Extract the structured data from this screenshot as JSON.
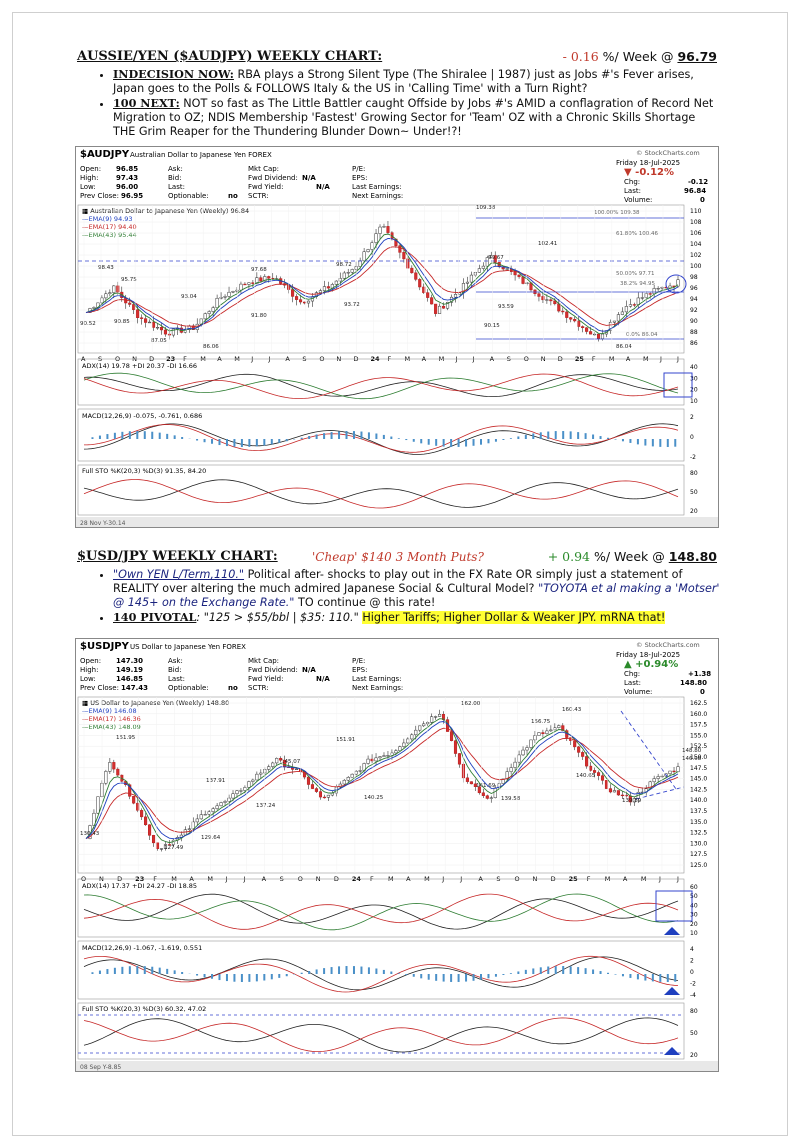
{
  "section1": {
    "title": "AUSSIE/YEN ($AUDJPY) WEEKLY CHART:",
    "change": "- 0.16",
    "week_label": "%/ Week @",
    "price": "96.79",
    "bullets": [
      {
        "lead": "INDECISION NOW:",
        "text": " RBA plays a Strong Silent Type (The Shiralee | 1987) just as Jobs #'s Fever arises, Japan goes to the Polls & FOLLOWS Italy & the US in 'Calling Time' with a Turn Right?"
      },
      {
        "lead": "100 NEXT:",
        "text": " NOT so fast as The Little Battler caught Offside by Jobs #'s AMID a conflagration of Record Net Migration to OZ; NDIS Membership 'Fastest' Growing Sector for 'Team' OZ with a Chronic Skills Shortage THE Grim Reaper for the Thundering Blunder Down~ Under!?!"
      }
    ],
    "chart": {
      "symbol": "$AUDJPY",
      "desc": "Australian Dollar to Japanese Yen FOREX",
      "source": "© StockCharts.com",
      "date": "Friday   18-Jul-2025",
      "change_pct": "▼ -0.12%",
      "chg": "-0.12",
      "last": "96.84",
      "volume": "0",
      "open": "96.85",
      "high": "97.43",
      "low": "96.00",
      "prev_close": "96.95",
      "optionable": "no",
      "fwd_dividend": "N/A",
      "fwd_yield": "N/A",
      "series_label": "■ Australian Dollar to Japanese Yen (Weekly) 96.84",
      "ema9": "—EMA(9) 94.93",
      "ema17": "—EMA(17) 94.40",
      "ema43": "—EMA(43) 95.44",
      "y_ticks": [
        "110",
        "108",
        "106",
        "104",
        "102",
        "100",
        "98",
        "96",
        "94",
        "92",
        "90",
        "88",
        "86"
      ],
      "x_ticks": [
        "A",
        "S",
        "O",
        "N",
        "D",
        "23",
        "F",
        "M",
        "A",
        "M",
        "J",
        "J",
        "A",
        "S",
        "O",
        "N",
        "D",
        "24",
        "F",
        "M",
        "A",
        "M",
        "J",
        "J",
        "A",
        "S",
        "O",
        "N",
        "D",
        "25",
        "F",
        "M",
        "A",
        "M",
        "J",
        "J"
      ],
      "annotations": [
        "109.38",
        "102.41",
        "99.67",
        "98.43",
        "98.72",
        "97.68",
        "95.75",
        "93.04",
        "93.72",
        "93.59",
        "91.80",
        "90.85",
        "90.52",
        "90.15",
        "87.05",
        "86.06",
        "86.04",
        "100.00% 109.38",
        "61.80% 100.46",
        "50.00% 97.71",
        "38.2% 94.95",
        "0.0% 86.04"
      ],
      "adx_label": "ADX(14) 19.78 +DI 20.37 -DI 16.66",
      "adx_ticks": [
        "40",
        "30",
        "20",
        "10"
      ],
      "macd_label": "MACD(12,26,9) -0.075, -0.761, 0.686",
      "macd_ticks": [
        "2",
        "0",
        "-2"
      ],
      "sto_label": "Full STO %K(20,3) %D(3) 91.35, 84.20",
      "sto_ticks": [
        "80",
        "50",
        "20"
      ],
      "footer": "28 Nov Y-30.14"
    }
  },
  "section2": {
    "title": "$USD/JPY WEEKLY CHART:",
    "puts": "'Cheap' $140 3 Month Puts?",
    "change": "+ 0.94",
    "week_label": "%/ Week @",
    "price": "148.80",
    "bullet1_a": "\"Own YEN L/Term,110.\"",
    "bullet1_b": "   Political after- shocks to play out in the FX Rate OR simply just a statement of REALITY over altering the much admired Japanese Social & Cultural Model? ",
    "bullet1_c": "\"TOYOTA et al making a 'Motser' @ 145+ on the Exchange Rate.\"",
    "bullet1_d": "   TO continue @ this rate!",
    "bullet2_lead": "140 PIVOTAL",
    "bullet2_a": ": \"125 > $55/bbl | $35:  110.\" ",
    "bullet2_hl": "Higher Tariffs; Higher Dollar & Weaker JPY. mRNA that!",
    "chart": {
      "symbol": "$USDJPY",
      "desc": "US Dollar to Japanese Yen FOREX",
      "source": "© StockCharts.com",
      "date": "Friday   18-Jul-2025",
      "change_pct": "▲ +0.94%",
      "chg": "+1.38",
      "last": "148.80",
      "volume": "0",
      "open": "147.30",
      "high": "149.19",
      "low": "146.85",
      "prev_close": "147.43",
      "optionable": "no",
      "fwd_dividend": "N/A",
      "fwd_yield": "N/A",
      "series_label": "■ US Dollar to Japanese Yen (Weekly) 148.80",
      "ema9": "—EMA(9) 146.08",
      "ema17": "—EMA(17) 146.36",
      "ema43": "—EMA(43) 148.09",
      "y_ticks": [
        "162.5",
        "160.0",
        "157.5",
        "155.0",
        "152.5",
        "150.0",
        "147.5",
        "145.0",
        "142.5",
        "140.0",
        "137.5",
        "135.0",
        "132.5",
        "130.0",
        "127.5",
        "125.0"
      ],
      "x_ticks": [
        "O",
        "N",
        "D",
        "23",
        "F",
        "M",
        "A",
        "M",
        "J",
        "J",
        "A",
        "S",
        "O",
        "N",
        "D",
        "24",
        "F",
        "M",
        "A",
        "M",
        "J",
        "J",
        "A",
        "S",
        "O",
        "N",
        "D",
        "25",
        "F",
        "M",
        "A",
        "M",
        "J",
        "J"
      ],
      "annotations": [
        "162.00",
        "160.43",
        "156.75",
        "151.95",
        "151.91",
        "148.80",
        "146.08",
        "145.07",
        "140.65",
        "141.69",
        "140.25",
        "139.58",
        "139.89",
        "137.91",
        "137.24",
        "130.43",
        "129.64",
        "127.49"
      ],
      "adx_label": "ADX(14) 17.37 +DI 24.27 -DI 18.85",
      "adx_ticks": [
        "60",
        "50",
        "40",
        "30",
        "20",
        "10"
      ],
      "macd_label": "MACD(12,26,9) -1.067, -1.619, 0.551",
      "macd_ticks": [
        "4",
        "2",
        "0",
        "-2",
        "-4"
      ],
      "sto_label": "Full STO %K(20,3) %D(3) 60.32, 47.02",
      "sto_ticks": [
        "80",
        "50",
        "20"
      ],
      "footer": "08 Sep Y-8.85"
    }
  }
}
